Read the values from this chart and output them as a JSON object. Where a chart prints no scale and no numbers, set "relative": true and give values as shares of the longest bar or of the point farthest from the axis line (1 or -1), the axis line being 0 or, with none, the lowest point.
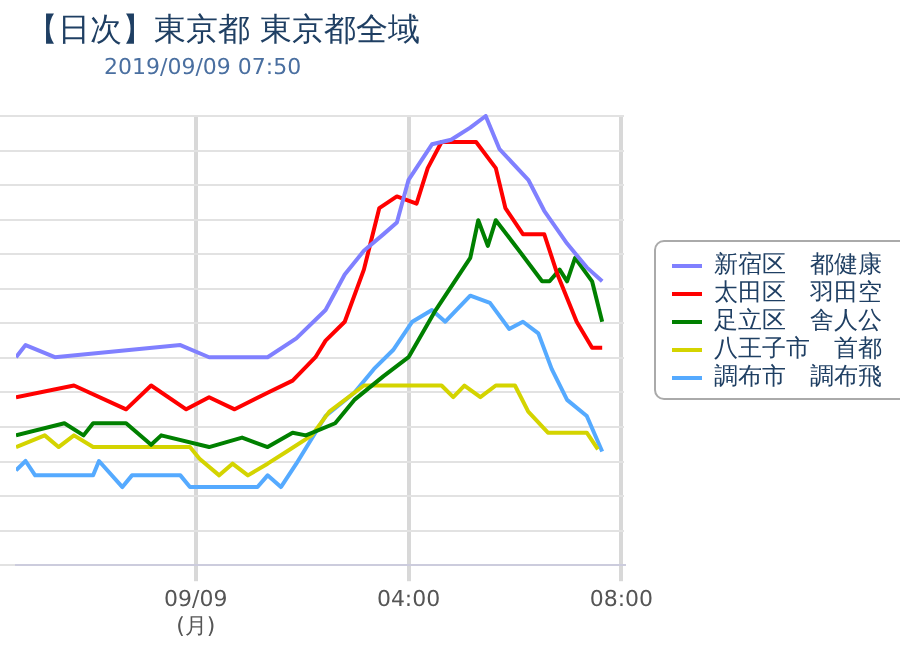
{
  "chart_data": {
    "type": "line",
    "title": "【日次】東京都 東京都全域",
    "subtitle": "2019/09/09 07:50",
    "relative": true,
    "xlim": [
      -3.38,
      8.05
    ],
    "xticks": [
      {
        "value": 0,
        "label": "09/09\n(月)"
      },
      {
        "value": 4,
        "label": "04:00"
      },
      {
        "value": 8,
        "label": "08:00"
      }
    ],
    "grid": true,
    "legend": "right",
    "marker": "none",
    "line_style": "solid",
    "series": [
      {
        "name": "新宿区　都健康",
        "color": "#8080ff",
        "x": [
          -3.38,
          -3.2,
          -2.65,
          -0.29,
          0.25,
          1.35,
          1.89,
          2.44,
          2.8,
          3.16,
          3.53,
          3.78,
          4.0,
          4.44,
          4.8,
          5.16,
          5.45,
          5.71,
          6.25,
          6.55,
          6.98,
          7.35,
          7.64
        ],
        "values": [
          0.463,
          0.49,
          0.463,
          0.49,
          0.463,
          0.463,
          0.505,
          0.568,
          0.647,
          0.7,
          0.737,
          0.763,
          0.858,
          0.937,
          0.947,
          0.974,
          1,
          0.926,
          0.858,
          0.789,
          0.716,
          0.663,
          0.632
        ]
      },
      {
        "name": "太田区　羽田空",
        "color": "#ff0000",
        "x": [
          -3.38,
          -2.29,
          -1.31,
          -0.84,
          -0.18,
          0.25,
          0.73,
          1.35,
          1.82,
          2.25,
          2.44,
          2.8,
          3.16,
          3.45,
          3.78,
          4.15,
          4.36,
          4.62,
          5.27,
          5.64,
          5.82,
          6.15,
          6.55,
          6.8,
          7.16,
          7.45,
          7.64
        ],
        "values": [
          0.374,
          0.4,
          0.347,
          0.4,
          0.347,
          0.374,
          0.347,
          0.384,
          0.411,
          0.463,
          0.5,
          0.542,
          0.658,
          0.795,
          0.821,
          0.805,
          0.884,
          0.942,
          0.942,
          0.884,
          0.795,
          0.737,
          0.737,
          0.647,
          0.542,
          0.484,
          0.484
        ]
      },
      {
        "name": "足立区　舎人公",
        "color": "#008000",
        "x": [
          -3.38,
          -2.47,
          -2.11,
          -1.93,
          -1.31,
          -0.84,
          -0.65,
          0.25,
          0.87,
          1.35,
          1.82,
          2.07,
          2.62,
          2.98,
          3.53,
          4.0,
          4.51,
          5.16,
          5.31,
          5.49,
          5.64,
          6.15,
          6.51,
          6.65,
          6.84,
          6.98,
          7.13,
          7.45,
          7.64
        ],
        "values": [
          0.289,
          0.316,
          0.289,
          0.316,
          0.316,
          0.268,
          0.289,
          0.263,
          0.284,
          0.263,
          0.295,
          0.289,
          0.316,
          0.368,
          0.421,
          0.463,
          0.568,
          0.684,
          0.768,
          0.711,
          0.768,
          0.689,
          0.632,
          0.632,
          0.658,
          0.632,
          0.684,
          0.632,
          0.542
        ]
      },
      {
        "name": "八王子市　首都",
        "color": "#d4d400",
        "x": [
          -3.38,
          -2.84,
          -2.58,
          -2.29,
          -1.93,
          -0.11,
          0.07,
          0.44,
          0.69,
          0.98,
          1.35,
          1.71,
          2.18,
          2.51,
          3.16,
          4.62,
          4.84,
          5.05,
          5.35,
          5.64,
          6.0,
          6.25,
          6.62,
          7.35,
          7.56
        ],
        "values": [
          0.263,
          0.289,
          0.263,
          0.289,
          0.263,
          0.263,
          0.237,
          0.2,
          0.226,
          0.2,
          0.226,
          0.253,
          0.289,
          0.342,
          0.4,
          0.4,
          0.374,
          0.4,
          0.374,
          0.4,
          0.4,
          0.342,
          0.295,
          0.295,
          0.258
        ]
      },
      {
        "name": "調布市　調布飛",
        "color": "#55aaff",
        "x": [
          -3.38,
          -3.2,
          -3.02,
          -1.93,
          -1.82,
          -1.38,
          -1.2,
          -0.29,
          -0.11,
          1.16,
          1.35,
          1.6,
          1.89,
          2.44,
          2.98,
          3.35,
          3.71,
          4.07,
          4.44,
          4.69,
          5.16,
          5.53,
          5.89,
          6.15,
          6.44,
          6.69,
          6.98,
          7.35,
          7.64
        ],
        "values": [
          0.211,
          0.232,
          0.2,
          0.2,
          0.232,
          0.174,
          0.2,
          0.2,
          0.174,
          0.174,
          0.2,
          0.174,
          0.226,
          0.332,
          0.384,
          0.437,
          0.479,
          0.542,
          0.568,
          0.542,
          0.6,
          0.584,
          0.526,
          0.542,
          0.516,
          0.437,
          0.368,
          0.332,
          0.253
        ]
      }
    ]
  }
}
